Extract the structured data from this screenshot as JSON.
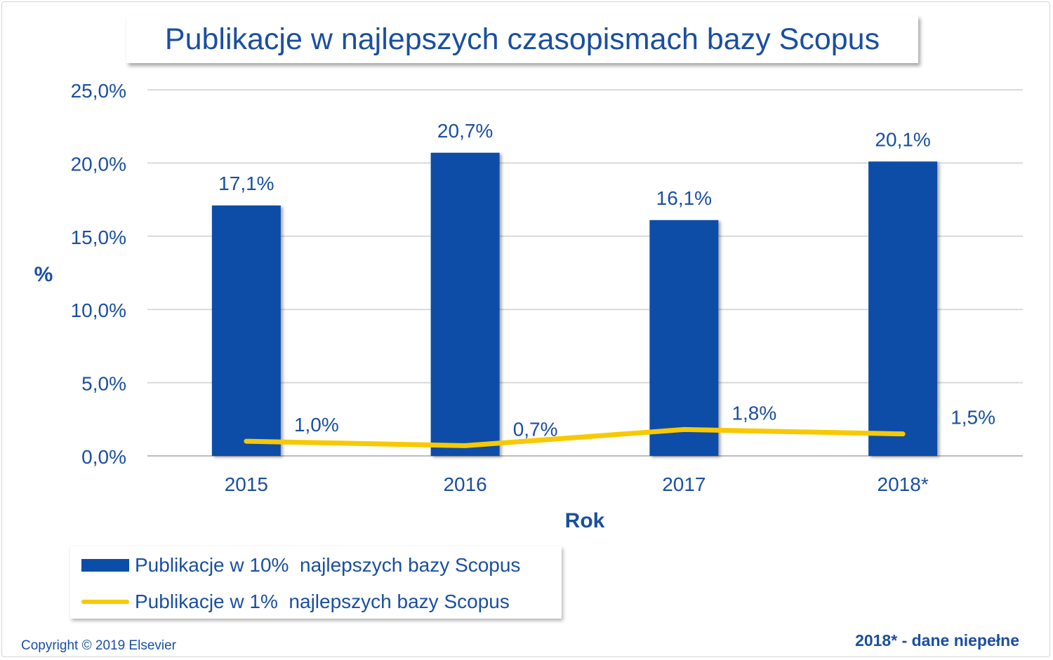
{
  "chart_data": {
    "type": "bar",
    "title": "Publikacje w najlepszych czasopismach bazy Scopus",
    "xlabel": "Rok",
    "ylabel": "%",
    "ylim": [
      0,
      25
    ],
    "y_ticks": [
      "0,0%",
      "5,0%",
      "10,0%",
      "15,0%",
      "20,0%",
      "25,0%"
    ],
    "categories": [
      "2015",
      "2016",
      "2017",
      "2018*"
    ],
    "grid": true,
    "legend_position": "bottom-left",
    "series": [
      {
        "name": "Publikacje w 10%  najlepszych bazy Scopus",
        "type": "bar",
        "color": "#0a4ea8",
        "values": [
          17.1,
          20.7,
          16.1,
          20.1
        ],
        "labels": [
          "17,1%",
          "20,7%",
          "16,1%",
          "20,1%"
        ]
      },
      {
        "name": "Publikacje w 1%  najlepszych bazy Scopus",
        "type": "line",
        "color": "#f7c900",
        "values": [
          1.0,
          0.7,
          1.8,
          1.5
        ],
        "labels": [
          "1,0%",
          "0,7%",
          "1,8%",
          "1,5%"
        ]
      }
    ]
  },
  "footer": {
    "copyright": "Copyright © 2019 Elsevier",
    "note": "2018* - dane niepełne"
  }
}
